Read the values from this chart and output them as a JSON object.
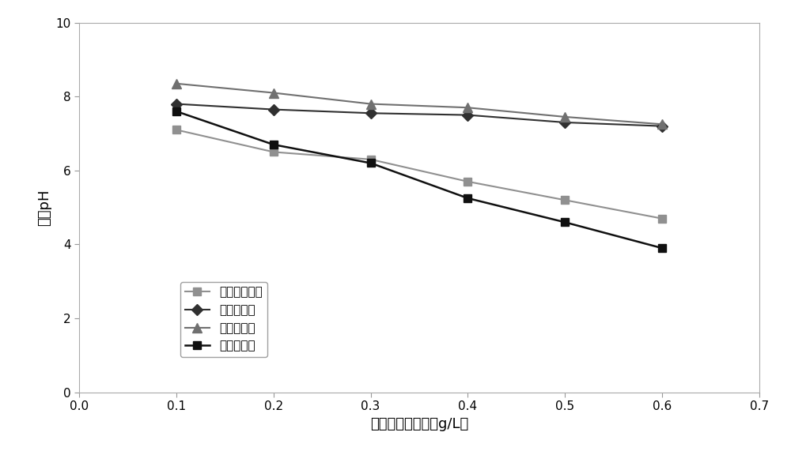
{
  "x": [
    0.1,
    0.2,
    0.3,
    0.4,
    0.5,
    0.6
  ],
  "series_order": [
    "国外某混凝剂",
    "聚合氯化铝",
    "自制混凝剂",
    "聚合硫酸铁"
  ],
  "series": {
    "国外某混凝剂": {
      "y": [
        7.1,
        6.5,
        6.3,
        5.7,
        5.2,
        4.7
      ],
      "color": "#909090",
      "marker": "s",
      "linestyle": "-",
      "linewidth": 1.5,
      "markersize": 7
    },
    "聚合氯化铝": {
      "y": [
        7.8,
        7.65,
        7.55,
        7.5,
        7.3,
        7.2
      ],
      "color": "#303030",
      "marker": "D",
      "linestyle": "-",
      "linewidth": 1.5,
      "markersize": 7
    },
    "自制混凝剂": {
      "y": [
        8.35,
        8.1,
        7.8,
        7.7,
        7.45,
        7.25
      ],
      "color": "#707070",
      "marker": "^",
      "linestyle": "-",
      "linewidth": 1.5,
      "markersize": 8
    },
    "聚合硫酸铁": {
      "y": [
        7.6,
        6.7,
        6.2,
        5.25,
        4.6,
        3.9
      ],
      "color": "#101010",
      "marker": "s",
      "linestyle": "-",
      "linewidth": 1.8,
      "markersize": 7
    }
  },
  "xlabel": "混凝剂的投加量（g/L）",
  "ylabel": "出水pH",
  "xlim": [
    0,
    0.7
  ],
  "ylim": [
    0,
    10
  ],
  "xticks": [
    0,
    0.1,
    0.2,
    0.3,
    0.4,
    0.5,
    0.6,
    0.7
  ],
  "yticks": [
    0,
    2,
    4,
    6,
    8,
    10
  ],
  "background_color": "#ffffff",
  "font_size_label": 13,
  "font_size_tick": 11,
  "font_size_legend": 11
}
